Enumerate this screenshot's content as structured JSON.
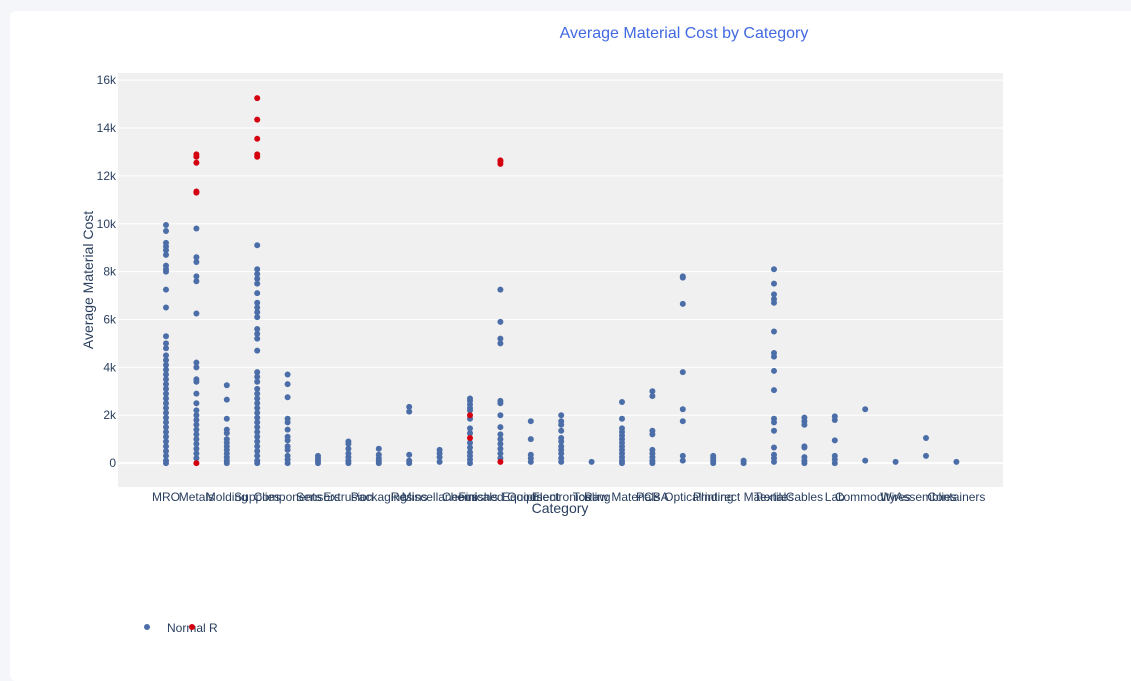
{
  "colors": {
    "page_bg": "#f5f6fa",
    "card_bg": "#ffffff",
    "plot_bg": "#f0f0f0",
    "grid": "#ffffff",
    "text": "#2a3f5f",
    "title": "#4169e1",
    "normal": "#4c6ea8",
    "outlier": "#d40010"
  },
  "chart_data": {
    "type": "scatter",
    "title": "Average Material Cost by Category",
    "xlabel": "Category",
    "ylabel": "Average Material Cost",
    "ylim": [
      -1000,
      16300
    ],
    "y_ticks": [
      0,
      2000,
      4000,
      6000,
      8000,
      10000,
      12000,
      14000,
      16000
    ],
    "y_tick_labels": [
      "0",
      "2k",
      "4k",
      "6k",
      "8k",
      "10k",
      "12k",
      "14k",
      "16k"
    ],
    "grid": true,
    "legend_position": "bottom-left",
    "categories": [
      "MRO",
      "Metals",
      "Molding",
      "Supplies",
      "Components",
      "Sensors",
      "Extrusion",
      "Packaging",
      "Resins",
      "Miscellaneous",
      "Chemicals",
      "Finished Goods",
      "Equipment",
      "Electronics",
      "Tooling",
      "Raw Materials",
      "PCBA",
      "Optical",
      "Printing",
      "Indirect Material",
      "Textiles",
      "Cables",
      "Lab",
      "Commodity",
      "Wires",
      "Assemblies",
      "Containers"
    ],
    "series": [
      {
        "name": "Normal",
        "points": [
          [
            "MRO",
            9950
          ],
          [
            "MRO",
            9700
          ],
          [
            "MRO",
            9200
          ],
          [
            "MRO",
            9050
          ],
          [
            "MRO",
            8900
          ],
          [
            "MRO",
            8700
          ],
          [
            "MRO",
            8250
          ],
          [
            "MRO",
            8100
          ],
          [
            "MRO",
            8000
          ],
          [
            "MRO",
            7250
          ],
          [
            "MRO",
            6500
          ],
          [
            "MRO",
            5300
          ],
          [
            "MRO",
            5000
          ],
          [
            "MRO",
            4800
          ],
          [
            "MRO",
            4500
          ],
          [
            "MRO",
            4300
          ],
          [
            "MRO",
            4100
          ],
          [
            "MRO",
            3900
          ],
          [
            "MRO",
            3700
          ],
          [
            "MRO",
            3500
          ],
          [
            "MRO",
            3300
          ],
          [
            "MRO",
            3100
          ],
          [
            "MRO",
            2900
          ],
          [
            "MRO",
            2700
          ],
          [
            "MRO",
            2500
          ],
          [
            "MRO",
            2300
          ],
          [
            "MRO",
            2100
          ],
          [
            "MRO",
            1900
          ],
          [
            "MRO",
            1700
          ],
          [
            "MRO",
            1500
          ],
          [
            "MRO",
            1300
          ],
          [
            "MRO",
            1100
          ],
          [
            "MRO",
            900
          ],
          [
            "MRO",
            700
          ],
          [
            "MRO",
            500
          ],
          [
            "MRO",
            300
          ],
          [
            "MRO",
            100
          ],
          [
            "MRO",
            0
          ],
          [
            "Metals",
            9800
          ],
          [
            "Metals",
            8600
          ],
          [
            "Metals",
            8400
          ],
          [
            "Metals",
            7800
          ],
          [
            "Metals",
            7600
          ],
          [
            "Metals",
            6250
          ],
          [
            "Metals",
            4200
          ],
          [
            "Metals",
            4000
          ],
          [
            "Metals",
            3500
          ],
          [
            "Metals",
            3400
          ],
          [
            "Metals",
            2900
          ],
          [
            "Metals",
            2500
          ],
          [
            "Metals",
            2200
          ],
          [
            "Metals",
            2000
          ],
          [
            "Metals",
            1800
          ],
          [
            "Metals",
            1600
          ],
          [
            "Metals",
            1400
          ],
          [
            "Metals",
            1200
          ],
          [
            "Metals",
            1000
          ],
          [
            "Metals",
            800
          ],
          [
            "Metals",
            600
          ],
          [
            "Metals",
            400
          ],
          [
            "Metals",
            200
          ],
          [
            "Molding",
            3250
          ],
          [
            "Molding",
            2650
          ],
          [
            "Molding",
            1850
          ],
          [
            "Molding",
            1400
          ],
          [
            "Molding",
            1250
          ],
          [
            "Molding",
            1000
          ],
          [
            "Molding",
            850
          ],
          [
            "Molding",
            700
          ],
          [
            "Molding",
            550
          ],
          [
            "Molding",
            400
          ],
          [
            "Molding",
            250
          ],
          [
            "Molding",
            100
          ],
          [
            "Molding",
            0
          ],
          [
            "Supplies",
            9100
          ],
          [
            "Supplies",
            8100
          ],
          [
            "Supplies",
            7900
          ],
          [
            "Supplies",
            7700
          ],
          [
            "Supplies",
            7500
          ],
          [
            "Supplies",
            7100
          ],
          [
            "Supplies",
            6700
          ],
          [
            "Supplies",
            6500
          ],
          [
            "Supplies",
            6300
          ],
          [
            "Supplies",
            6100
          ],
          [
            "Supplies",
            5600
          ],
          [
            "Supplies",
            5400
          ],
          [
            "Supplies",
            5200
          ],
          [
            "Supplies",
            4700
          ],
          [
            "Supplies",
            3800
          ],
          [
            "Supplies",
            3600
          ],
          [
            "Supplies",
            3400
          ],
          [
            "Supplies",
            3100
          ],
          [
            "Supplies",
            2900
          ],
          [
            "Supplies",
            2700
          ],
          [
            "Supplies",
            2500
          ],
          [
            "Supplies",
            2300
          ],
          [
            "Supplies",
            2100
          ],
          [
            "Supplies",
            1900
          ],
          [
            "Supplies",
            1700
          ],
          [
            "Supplies",
            1500
          ],
          [
            "Supplies",
            1300
          ],
          [
            "Supplies",
            1100
          ],
          [
            "Supplies",
            900
          ],
          [
            "Supplies",
            700
          ],
          [
            "Supplies",
            500
          ],
          [
            "Supplies",
            300
          ],
          [
            "Supplies",
            100
          ],
          [
            "Supplies",
            0
          ],
          [
            "Components",
            3700
          ],
          [
            "Components",
            3300
          ],
          [
            "Components",
            2750
          ],
          [
            "Components",
            1850
          ],
          [
            "Components",
            1700
          ],
          [
            "Components",
            1400
          ],
          [
            "Components",
            1100
          ],
          [
            "Components",
            950
          ],
          [
            "Components",
            700
          ],
          [
            "Components",
            550
          ],
          [
            "Components",
            300
          ],
          [
            "Components",
            150
          ],
          [
            "Components",
            0
          ],
          [
            "Sensors",
            300
          ],
          [
            "Sensors",
            200
          ],
          [
            "Sensors",
            100
          ],
          [
            "Sensors",
            0
          ],
          [
            "Extrusion",
            900
          ],
          [
            "Extrusion",
            800
          ],
          [
            "Extrusion",
            600
          ],
          [
            "Extrusion",
            400
          ],
          [
            "Extrusion",
            250
          ],
          [
            "Extrusion",
            100
          ],
          [
            "Extrusion",
            0
          ],
          [
            "Packaging",
            600
          ],
          [
            "Packaging",
            350
          ],
          [
            "Packaging",
            200
          ],
          [
            "Packaging",
            100
          ],
          [
            "Packaging",
            0
          ],
          [
            "Resins",
            2350
          ],
          [
            "Resins",
            2150
          ],
          [
            "Resins",
            350
          ],
          [
            "Resins",
            100
          ],
          [
            "Resins",
            0
          ],
          [
            "Miscellaneous",
            550
          ],
          [
            "Miscellaneous",
            400
          ],
          [
            "Miscellaneous",
            250
          ],
          [
            "Miscellaneous",
            50
          ],
          [
            "Chemicals",
            2700
          ],
          [
            "Chemicals",
            2600
          ],
          [
            "Chemicals",
            2450
          ],
          [
            "Chemicals",
            2300
          ],
          [
            "Chemicals",
            2200
          ],
          [
            "Chemicals",
            1850
          ],
          [
            "Chemicals",
            1450
          ],
          [
            "Chemicals",
            1250
          ],
          [
            "Chemicals",
            850
          ],
          [
            "Chemicals",
            650
          ],
          [
            "Chemicals",
            450
          ],
          [
            "Chemicals",
            300
          ],
          [
            "Chemicals",
            150
          ],
          [
            "Chemicals",
            0
          ],
          [
            "Finished Goods",
            7250
          ],
          [
            "Finished Goods",
            5900
          ],
          [
            "Finished Goods",
            5200
          ],
          [
            "Finished Goods",
            5000
          ],
          [
            "Finished Goods",
            2600
          ],
          [
            "Finished Goods",
            2500
          ],
          [
            "Finished Goods",
            2000
          ],
          [
            "Finished Goods",
            1500
          ],
          [
            "Finished Goods",
            1200
          ],
          [
            "Finished Goods",
            1000
          ],
          [
            "Finished Goods",
            800
          ],
          [
            "Finished Goods",
            600
          ],
          [
            "Finished Goods",
            400
          ],
          [
            "Finished Goods",
            200
          ],
          [
            "Equipment",
            1750
          ],
          [
            "Equipment",
            1000
          ],
          [
            "Equipment",
            350
          ],
          [
            "Equipment",
            200
          ],
          [
            "Equipment",
            50
          ],
          [
            "Electronics",
            2000
          ],
          [
            "Electronics",
            1750
          ],
          [
            "Electronics",
            1600
          ],
          [
            "Electronics",
            1350
          ],
          [
            "Electronics",
            1050
          ],
          [
            "Electronics",
            900
          ],
          [
            "Electronics",
            700
          ],
          [
            "Electronics",
            550
          ],
          [
            "Electronics",
            400
          ],
          [
            "Electronics",
            200
          ],
          [
            "Electronics",
            50
          ],
          [
            "Tooling",
            50
          ],
          [
            "Raw Materials",
            2550
          ],
          [
            "Raw Materials",
            1850
          ],
          [
            "Raw Materials",
            1450
          ],
          [
            "Raw Materials",
            1300
          ],
          [
            "Raw Materials",
            1150
          ],
          [
            "Raw Materials",
            1000
          ],
          [
            "Raw Materials",
            850
          ],
          [
            "Raw Materials",
            700
          ],
          [
            "Raw Materials",
            550
          ],
          [
            "Raw Materials",
            400
          ],
          [
            "Raw Materials",
            250
          ],
          [
            "Raw Materials",
            100
          ],
          [
            "Raw Materials",
            0
          ],
          [
            "PCBA",
            3000
          ],
          [
            "PCBA",
            2800
          ],
          [
            "PCBA",
            1350
          ],
          [
            "PCBA",
            1200
          ],
          [
            "PCBA",
            550
          ],
          [
            "PCBA",
            400
          ],
          [
            "PCBA",
            250
          ],
          [
            "PCBA",
            100
          ],
          [
            "PCBA",
            0
          ],
          [
            "Optical",
            7800
          ],
          [
            "Optical",
            7750
          ],
          [
            "Optical",
            6650
          ],
          [
            "Optical",
            3800
          ],
          [
            "Optical",
            2250
          ],
          [
            "Optical",
            1750
          ],
          [
            "Optical",
            300
          ],
          [
            "Optical",
            100
          ],
          [
            "Printing",
            300
          ],
          [
            "Printing",
            200
          ],
          [
            "Printing",
            100
          ],
          [
            "Printing",
            0
          ],
          [
            "Indirect Material",
            100
          ],
          [
            "Indirect Material",
            0
          ],
          [
            "Textiles",
            8100
          ],
          [
            "Textiles",
            7500
          ],
          [
            "Textiles",
            7050
          ],
          [
            "Textiles",
            6850
          ],
          [
            "Textiles",
            6700
          ],
          [
            "Textiles",
            5500
          ],
          [
            "Textiles",
            4600
          ],
          [
            "Textiles",
            4450
          ],
          [
            "Textiles",
            3850
          ],
          [
            "Textiles",
            3050
          ],
          [
            "Textiles",
            1850
          ],
          [
            "Textiles",
            1700
          ],
          [
            "Textiles",
            1350
          ],
          [
            "Textiles",
            650
          ],
          [
            "Textiles",
            350
          ],
          [
            "Textiles",
            200
          ],
          [
            "Textiles",
            50
          ],
          [
            "Cables",
            1900
          ],
          [
            "Cables",
            1750
          ],
          [
            "Cables",
            1600
          ],
          [
            "Cables",
            700
          ],
          [
            "Cables",
            650
          ],
          [
            "Cables",
            250
          ],
          [
            "Cables",
            100
          ],
          [
            "Cables",
            0
          ],
          [
            "Lab",
            1950
          ],
          [
            "Lab",
            1800
          ],
          [
            "Lab",
            950
          ],
          [
            "Lab",
            300
          ],
          [
            "Lab",
            150
          ],
          [
            "Lab",
            0
          ],
          [
            "Commodity",
            2250
          ],
          [
            "Commodity",
            100
          ],
          [
            "Wires",
            50
          ],
          [
            "Assemblies",
            1050
          ],
          [
            "Assemblies",
            300
          ],
          [
            "Containers",
            50
          ]
        ]
      },
      {
        "name": "R",
        "points": [
          [
            "Metals",
            12900
          ],
          [
            "Metals",
            12800
          ],
          [
            "Metals",
            12550
          ],
          [
            "Metals",
            11350
          ],
          [
            "Metals",
            11300
          ],
          [
            "Metals",
            0
          ],
          [
            "Supplies",
            15250
          ],
          [
            "Supplies",
            14350
          ],
          [
            "Supplies",
            13550
          ],
          [
            "Supplies",
            12900
          ],
          [
            "Supplies",
            12800
          ],
          [
            "Chemicals",
            2000
          ],
          [
            "Chemicals",
            1050
          ],
          [
            "Finished Goods",
            12650
          ],
          [
            "Finished Goods",
            12600
          ],
          [
            "Finished Goods",
            12500
          ],
          [
            "Finished Goods",
            50
          ]
        ]
      }
    ]
  }
}
